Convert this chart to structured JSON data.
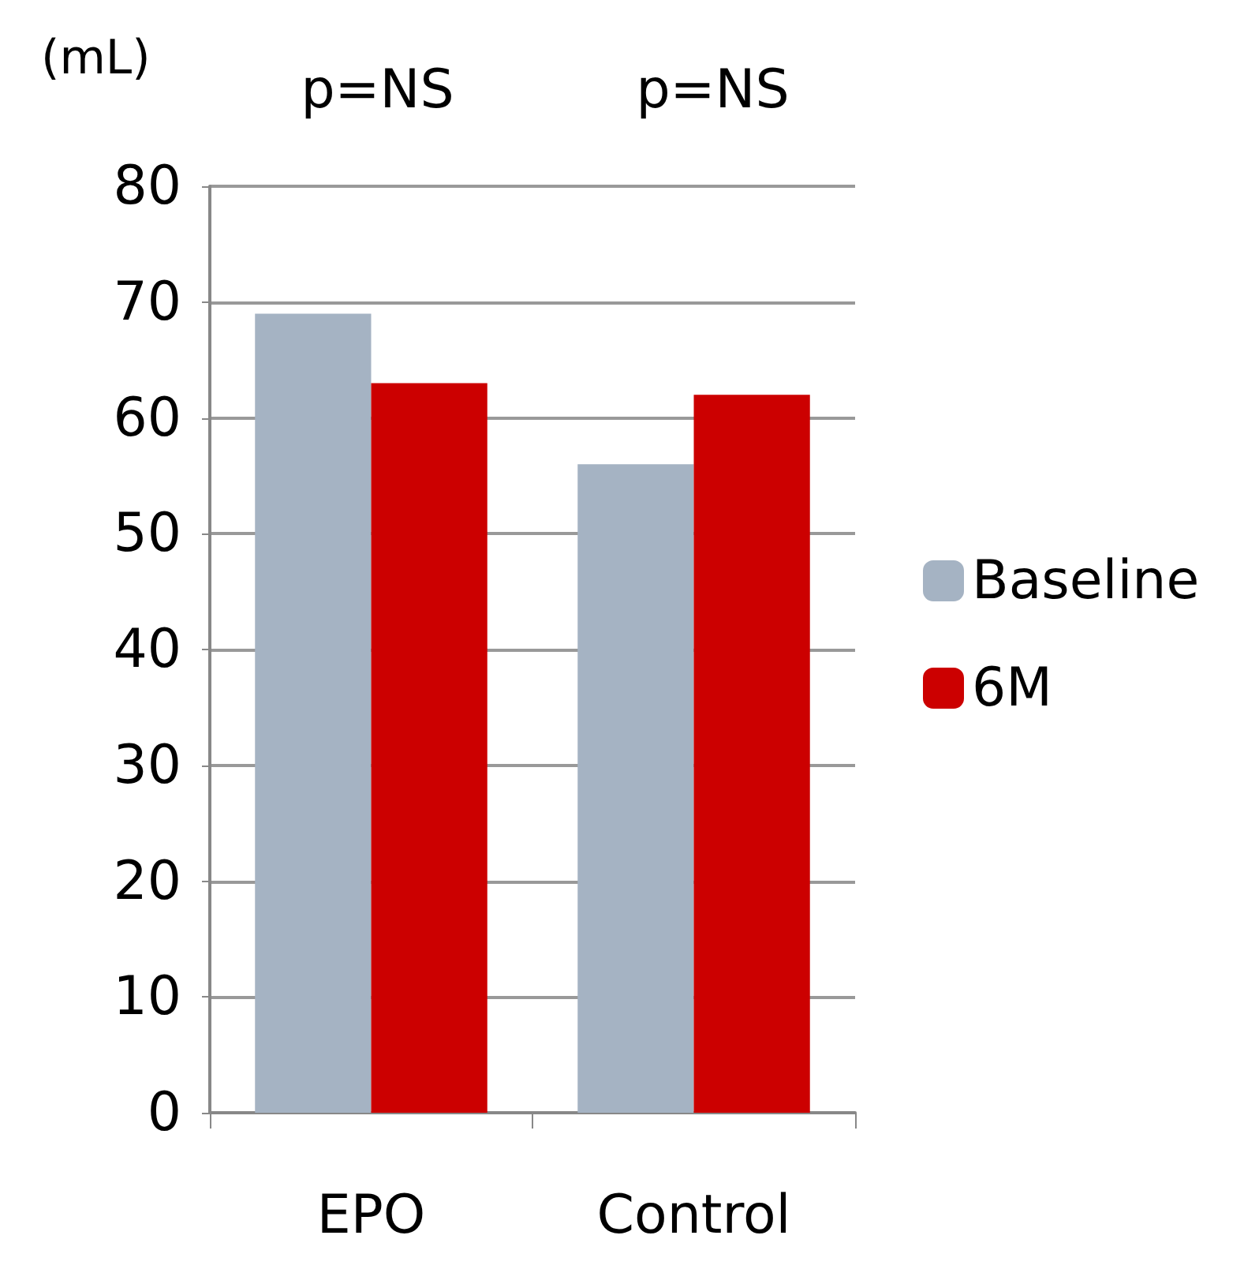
{
  "chart_data": {
    "type": "bar",
    "ylabel": "(mL)",
    "categories": [
      "EPO",
      "Control"
    ],
    "series": [
      {
        "name": "Baseline",
        "color": "#a5b3c3",
        "values": [
          69,
          56
        ]
      },
      {
        "name": "6M",
        "color": "#cc0000",
        "values": [
          63,
          62
        ]
      }
    ],
    "ylim": [
      0,
      80
    ],
    "yticks": [
      0,
      10,
      20,
      30,
      40,
      50,
      60,
      70,
      80
    ],
    "grid": "y",
    "legend": "right",
    "annotations": [
      "p=NS",
      "p=NS"
    ]
  }
}
